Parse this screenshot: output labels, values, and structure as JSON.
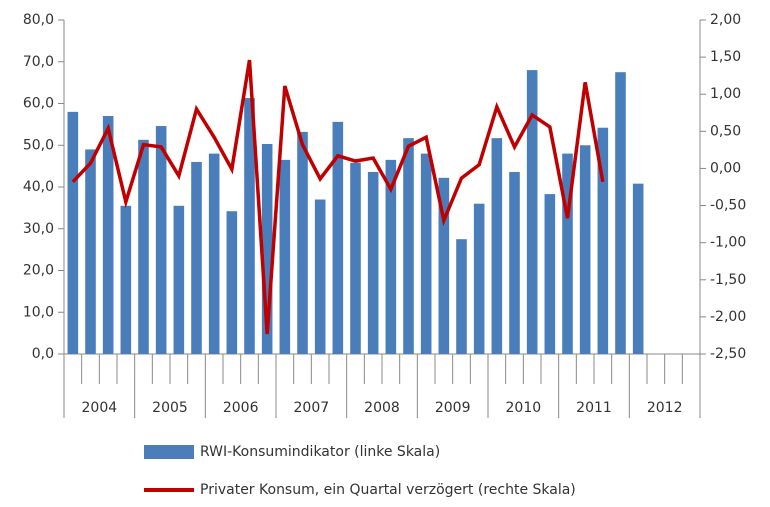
{
  "chart_data": {
    "type": "bar-line",
    "categories": [
      null,
      null,
      null,
      null,
      null,
      null,
      null,
      null,
      null,
      null,
      null,
      null,
      null,
      null,
      null,
      null,
      null,
      null,
      null,
      null,
      null,
      null,
      null,
      null,
      null,
      null,
      null,
      null,
      null,
      null,
      null,
      null,
      null,
      null,
      null,
      null
    ],
    "year_labels": [
      "2004",
      "2005",
      "2006",
      "2007",
      "2008",
      "2009",
      "2010",
      "2011",
      "2012"
    ],
    "series": [
      {
        "name": "RWI-Konsumindikator (linke Skala)",
        "color": "#4a7ebb",
        "kind": "bar",
        "values": [
          58,
          49,
          57,
          35.5,
          51.3,
          54.6,
          35.5,
          46,
          48,
          34.2,
          61.3,
          50.3,
          46.5,
          53.2,
          37,
          55.6,
          45.8,
          43.6,
          46.5,
          51.7,
          48,
          42.2,
          27.5,
          36,
          51.7,
          43.6,
          68,
          38.3,
          48,
          50,
          54.2,
          67.5,
          40.8,
          null,
          null,
          null
        ]
      },
      {
        "name": "Privater Konsum, ein Quartal verzögert (rechte Skala)",
        "color": "#c00000",
        "kind": "line",
        "axis": "y2",
        "values": [
          -0.18,
          0.07,
          0.54,
          -0.45,
          0.32,
          0.29,
          -0.1,
          0.8,
          0.42,
          -0.01,
          1.46,
          -2.23,
          1.11,
          0.32,
          -0.14,
          0.17,
          0.1,
          0.14,
          -0.28,
          0.3,
          0.42,
          -0.7,
          -0.13,
          0.05,
          0.83,
          0.29,
          0.72,
          0.56,
          -0.67,
          1.16,
          -0.18,
          null,
          null,
          null,
          null,
          null
        ]
      }
    ],
    "ylim": [
      0,
      80
    ],
    "yticks": [
      {
        "value": 0,
        "label": "0,0"
      },
      {
        "value": 10,
        "label": "10,0"
      },
      {
        "value": 20,
        "label": "20,0"
      },
      {
        "value": 30,
        "label": "30,0"
      },
      {
        "value": 40,
        "label": "40,0"
      },
      {
        "value": 50,
        "label": "50,0"
      },
      {
        "value": 60,
        "label": "60,0"
      },
      {
        "value": 70,
        "label": "70,0"
      },
      {
        "value": 80,
        "label": "80,0"
      }
    ],
    "y2lim": [
      -2.5,
      2
    ],
    "y2ticks": [
      {
        "value": -2.5,
        "label": "-2,50"
      },
      {
        "value": -2,
        "label": "-2,00"
      },
      {
        "value": -1.5,
        "label": "-1,50"
      },
      {
        "value": -1,
        "label": "-1,00"
      },
      {
        "value": -0.5,
        "label": "-0,50"
      },
      {
        "value": 0,
        "label": "0,00"
      },
      {
        "value": 0.5,
        "label": "0,50"
      },
      {
        "value": 1,
        "label": "1,00"
      },
      {
        "value": 1.5,
        "label": "1,50"
      },
      {
        "value": 2,
        "label": "2,00"
      }
    ]
  }
}
